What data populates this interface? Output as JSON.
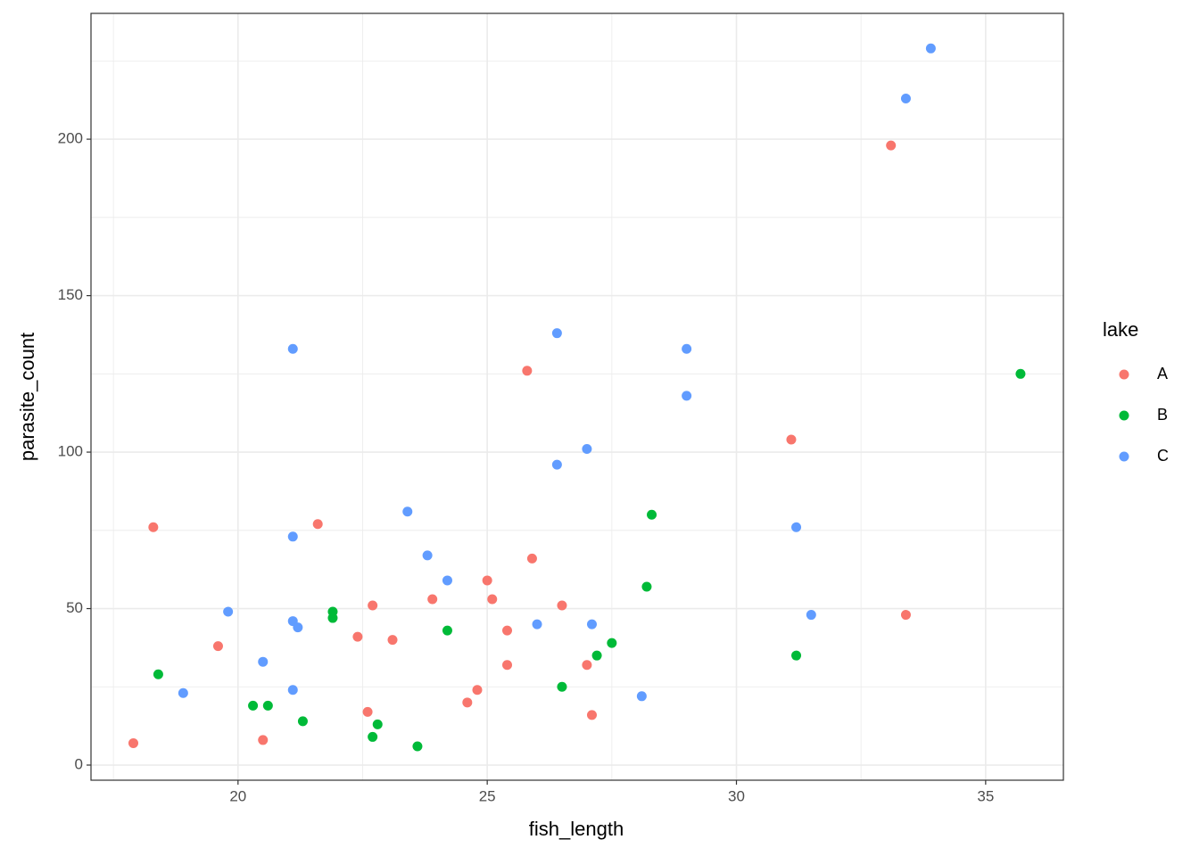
{
  "chart_data": {
    "type": "scatter",
    "x_label": "fish_length",
    "y_label": "parasite_count",
    "legend_title": "lake",
    "legend_position": "right",
    "grid": true,
    "xlim": [
      17.05,
      36.56
    ],
    "ylim": [
      -4.84,
      240.2
    ],
    "xticks": [
      20,
      25,
      30,
      35
    ],
    "yticks": [
      0,
      50,
      100,
      150,
      200
    ],
    "xminor": [
      17.5,
      22.5,
      27.5,
      32.5
    ],
    "yminor": [
      25,
      75,
      125,
      175,
      225
    ],
    "series": [
      {
        "name": "A",
        "color": "#F8766D",
        "x": [
          17.9,
          18.3,
          19.6,
          20.5,
          21.6,
          22.4,
          22.6,
          22.7,
          23.1,
          23.9,
          24.6,
          24.8,
          25.0,
          25.1,
          25.4,
          25.4,
          25.8,
          25.9,
          26.5,
          27.0,
          27.1,
          31.1,
          33.1,
          33.4
        ],
        "y": [
          7,
          76,
          38,
          8,
          77,
          41,
          17,
          51,
          40,
          53,
          20,
          24,
          59,
          53,
          32,
          43,
          126,
          66,
          51,
          32,
          16,
          104,
          198,
          48
        ]
      },
      {
        "name": "B",
        "color": "#00BA38",
        "x": [
          18.4,
          20.3,
          20.6,
          21.3,
          21.9,
          21.9,
          22.7,
          22.8,
          23.6,
          24.2,
          26.5,
          27.2,
          27.5,
          28.2,
          28.3,
          31.2,
          35.7
        ],
        "y": [
          29,
          19,
          19,
          14,
          49,
          47,
          9,
          13,
          6,
          43,
          25,
          35,
          39,
          57,
          80,
          35,
          125
        ]
      },
      {
        "name": "C",
        "color": "#619CFF",
        "x": [
          18.9,
          19.8,
          20.5,
          21.1,
          21.1,
          21.1,
          21.1,
          21.2,
          23.4,
          23.8,
          24.2,
          26.0,
          26.4,
          26.4,
          27.0,
          27.1,
          28.1,
          29.0,
          29.0,
          31.2,
          31.5,
          33.4,
          33.9
        ],
        "y": [
          23,
          49,
          33,
          133,
          73,
          46,
          24,
          44,
          81,
          67,
          59,
          45,
          96,
          138,
          101,
          45,
          22,
          133,
          118,
          76,
          48,
          213,
          229
        ]
      }
    ]
  }
}
